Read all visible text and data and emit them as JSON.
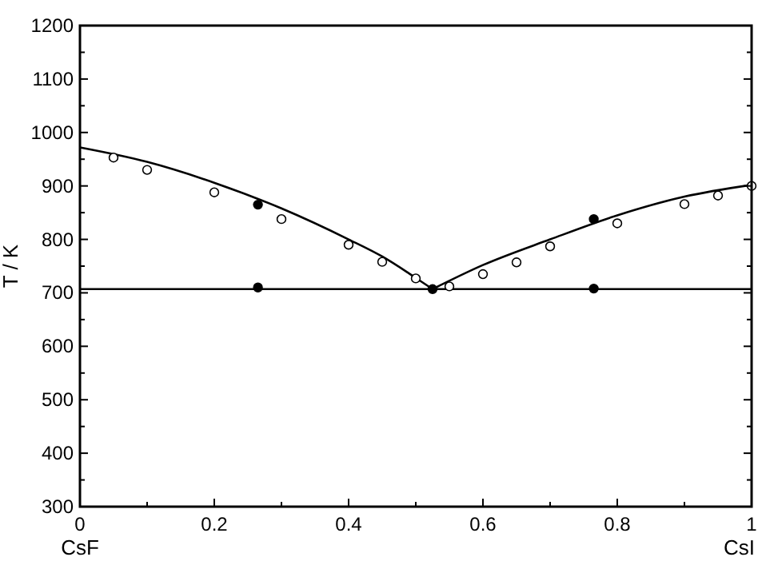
{
  "chart_data": {
    "type": "line",
    "ylabel": "T / K",
    "xlim": [
      0,
      1
    ],
    "ylim": [
      300,
      1200
    ],
    "xticks": [
      0,
      {
        "value": 0.1,
        "label": null
      },
      0.2,
      {
        "value": 0.3,
        "label": null
      },
      0.4,
      {
        "value": 0.5,
        "label": null
      },
      0.6,
      {
        "value": 0.7,
        "label": null
      },
      0.8,
      {
        "value": 0.9,
        "label": null
      },
      1
    ],
    "yticks": [
      300,
      {
        "value": 350,
        "label": null
      },
      400,
      {
        "value": 450,
        "label": null
      },
      500,
      {
        "value": 550,
        "label": null
      },
      600,
      {
        "value": 650,
        "label": null
      },
      700,
      {
        "value": 750,
        "label": null
      },
      800,
      {
        "value": 850,
        "label": null
      },
      900,
      {
        "value": 950,
        "label": null
      },
      1000,
      {
        "value": 1050,
        "label": null
      },
      1100,
      {
        "value": 1150,
        "label": null
      },
      1200
    ],
    "grid": false,
    "marker": "none",
    "line_style": "solid",
    "series": [
      {
        "color": "#000000",
        "x": [
          0,
          0.1,
          0.2,
          0.3,
          0.4,
          0.45,
          0.5,
          0.525
        ],
        "values": [
          972,
          945,
          906,
          858,
          800,
          768,
          728,
          707
        ]
      },
      {
        "color": "#000000",
        "x": [
          0.525,
          0.6,
          0.7,
          0.8,
          0.9,
          1
        ],
        "values": [
          707,
          752,
          800,
          845,
          880,
          902
        ]
      },
      {
        "type": "scatter",
        "marker": "circle",
        "color": "#ffffff",
        "x": [
          0.05,
          0.1,
          0.2,
          0.3,
          0.4,
          0.45,
          0.5,
          0.55,
          0.6,
          0.65,
          0.7,
          0.8,
          0.9,
          0.95,
          1
        ],
        "values": [
          953,
          930,
          888,
          838,
          790,
          758,
          727,
          712,
          735,
          757,
          787,
          830,
          866,
          882,
          900
        ]
      },
      {
        "type": "scatter",
        "marker": "circle",
        "color": "#000000",
        "x": [
          0.265,
          0.265,
          0.525,
          0.765,
          0.765
        ],
        "values": [
          865,
          710,
          707,
          838,
          708
        ]
      }
    ],
    "ref_lines": [
      {
        "axis": "y",
        "value": 707,
        "color": "#000000",
        "line_style": "solid"
      }
    ],
    "annotations": [
      "CsF",
      "CsI"
    ]
  }
}
